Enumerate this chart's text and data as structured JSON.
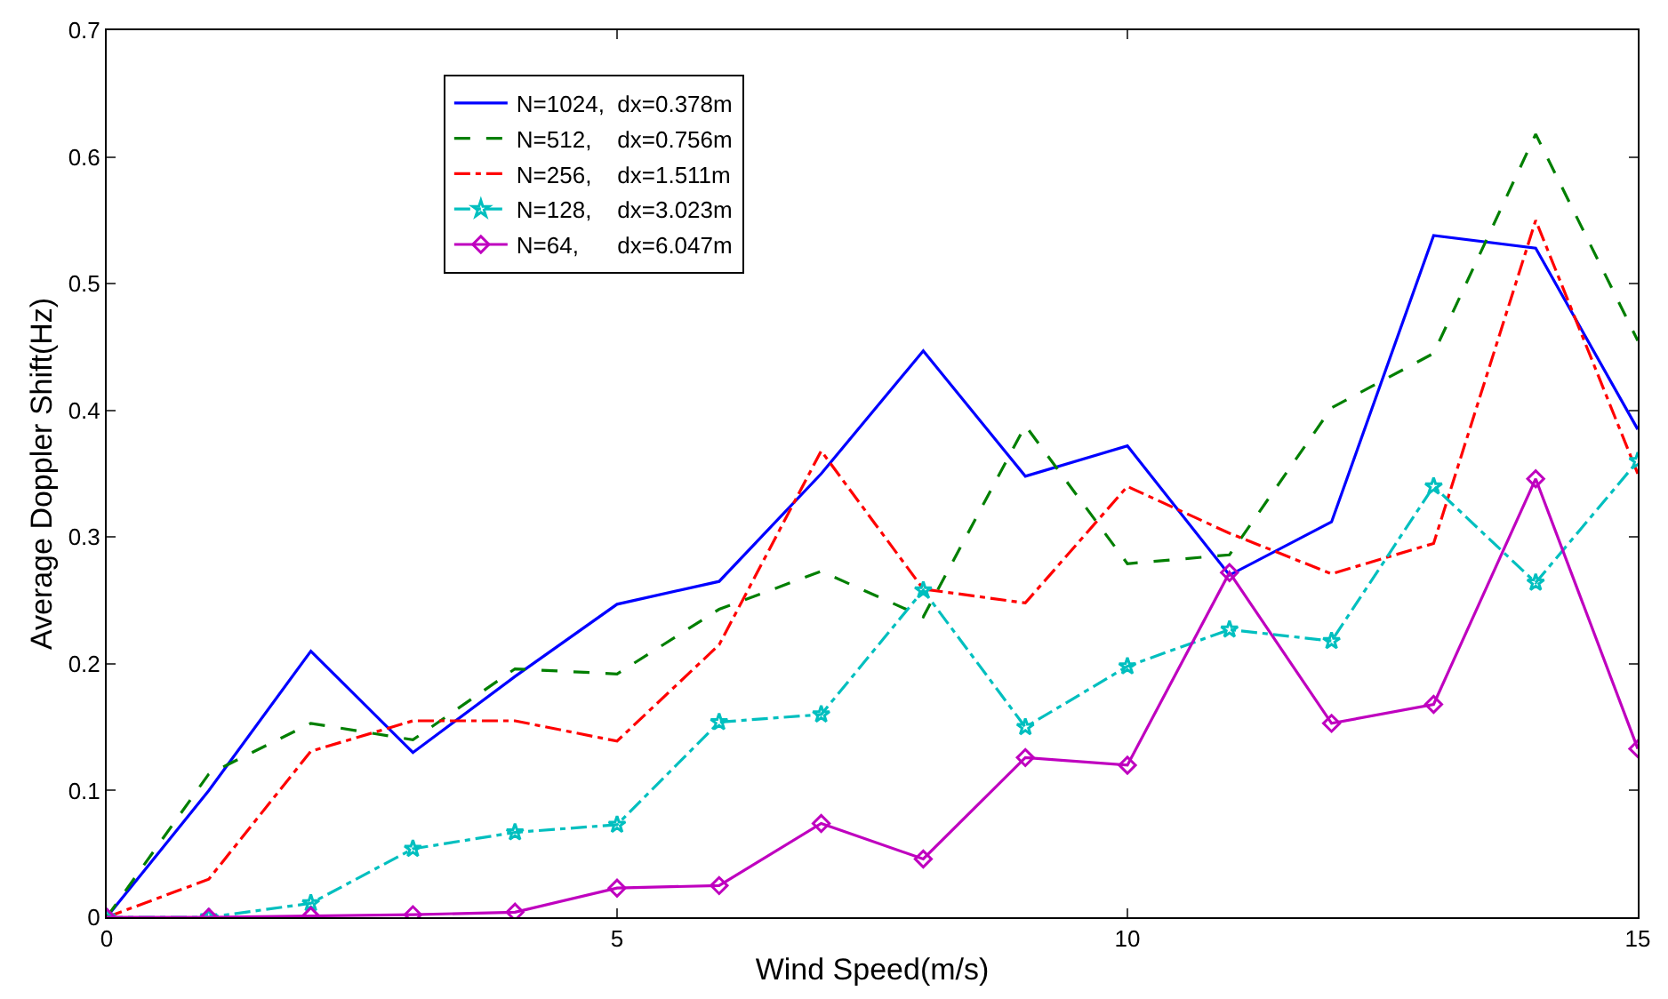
{
  "chart_data": {
    "type": "line",
    "xlabel": "Wind Speed(m/s)",
    "ylabel": "Average Doppler Shift(Hz)",
    "x": [
      0,
      1,
      2,
      3,
      4,
      5,
      6,
      7,
      8,
      9,
      10,
      11,
      12,
      13,
      14,
      15
    ],
    "xlim": [
      0,
      15
    ],
    "xticks": [
      0,
      5,
      10,
      15
    ],
    "ylim": [
      0,
      0.7
    ],
    "yticks": [
      0,
      0.1,
      0.2,
      0.3,
      0.4,
      0.5,
      0.6,
      0.7
    ],
    "grid": false,
    "legend": "top left",
    "series": [
      {
        "name": "N=1024,  dx=0.378m",
        "color": "#0000ff",
        "line_style": "solid",
        "marker": "none",
        "values": [
          0,
          0.1,
          0.21,
          0.13,
          0.19,
          0.247,
          0.265,
          0.35,
          0.447,
          0.348,
          0.372,
          0.27,
          0.312,
          0.538,
          0.528,
          0.385
        ]
      },
      {
        "name": "N=512,    dx=0.756m",
        "color": "#007f00",
        "line_style": "dashed",
        "marker": "none",
        "values": [
          0,
          0.113,
          0.153,
          0.14,
          0.196,
          0.192,
          0.243,
          0.273,
          0.237,
          0.388,
          0.279,
          0.286,
          0.402,
          0.445,
          0.618,
          0.455
        ]
      },
      {
        "name": "N=256,    dx=1.511m",
        "color": "#ff0000",
        "line_style": "dashdot",
        "marker": "none",
        "values": [
          0,
          0.03,
          0.131,
          0.155,
          0.155,
          0.139,
          0.215,
          0.368,
          0.259,
          0.248,
          0.34,
          0.303,
          0.271,
          0.295,
          0.55,
          0.35
        ]
      },
      {
        "name": "N=128,    dx=3.023m",
        "color": "#00bfbf",
        "line_style": "dashdot",
        "marker": "star",
        "values": [
          0,
          0,
          0.011,
          0.054,
          0.067,
          0.073,
          0.154,
          0.16,
          0.258,
          0.15,
          0.198,
          0.227,
          0.218,
          0.34,
          0.264,
          0.36
        ]
      },
      {
        "name": "N=64,      dx=6.047m",
        "color": "#bf00bf",
        "line_style": "solid",
        "marker": "diamond",
        "values": [
          0,
          0,
          0.001,
          0.002,
          0.004,
          0.023,
          0.025,
          0.074,
          0.046,
          0.126,
          0.12,
          0.272,
          0.153,
          0.168,
          0.346,
          0.133
        ]
      }
    ]
  }
}
